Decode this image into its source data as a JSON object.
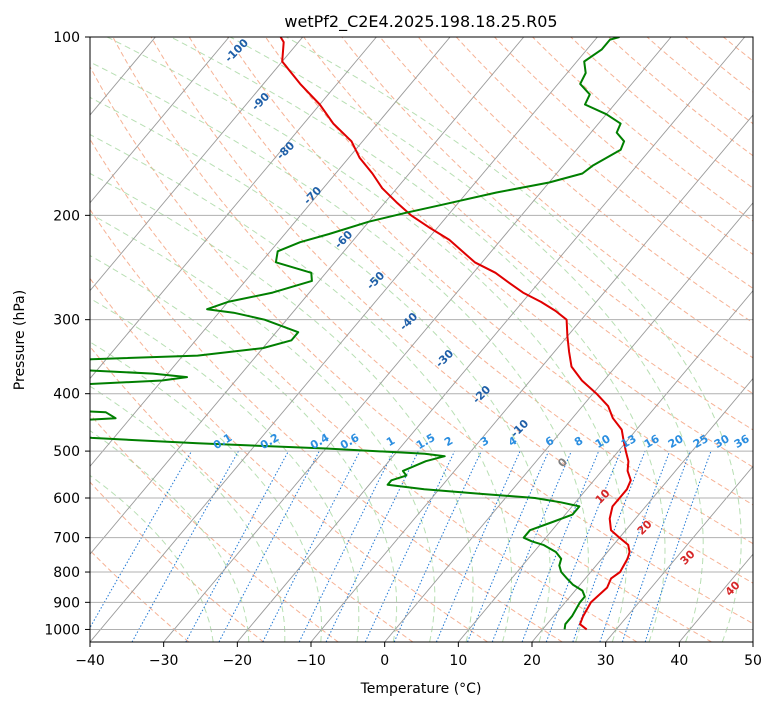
{
  "chart_data": {
    "type": "line",
    "title": "wetPf2_C2E4.2025.198.18.25.R05",
    "xlabel": "Temperature (°C)",
    "ylabel": "Pressure (hPa)",
    "xlim": [
      -40,
      50
    ],
    "ylim": [
      1050,
      100
    ],
    "log_y": true,
    "skew": true,
    "grid": true,
    "x_ticks": [
      "−40",
      "−30",
      "−20",
      "−10",
      "0",
      "10",
      "20",
      "30",
      "40",
      "50"
    ],
    "y_ticks": [
      "100",
      "200",
      "300",
      "400",
      "500",
      "600",
      "700",
      "800",
      "900",
      "1000"
    ],
    "dry_adiabat_labels": [
      "-100",
      "-90",
      "-80",
      "-70",
      "-60",
      "-50",
      "-40",
      "-30",
      "-20",
      "-10",
      "0",
      "10",
      "20",
      "30",
      "40"
    ],
    "mixing_ratio_labels": [
      "0.1",
      "0.2",
      "0.4",
      "0.6",
      "1",
      "1.5",
      "2",
      "3",
      "4",
      "6",
      "8",
      "10",
      "13",
      "16",
      "20",
      "25",
      "30",
      "36"
    ],
    "series": [
      {
        "color": "#e00000",
        "points": [
          [
            26,
            1000
          ],
          [
            24.5,
            980
          ],
          [
            24,
            950
          ],
          [
            23.5,
            900
          ],
          [
            24,
            850
          ],
          [
            23.5,
            820
          ],
          [
            24,
            800
          ],
          [
            23.5,
            760
          ],
          [
            23,
            740
          ],
          [
            22,
            720
          ],
          [
            20,
            700
          ],
          [
            18,
            680
          ],
          [
            16.5,
            650
          ],
          [
            15.5,
            620
          ],
          [
            15.5,
            600
          ],
          [
            15.5,
            580
          ],
          [
            15,
            560
          ],
          [
            13.5,
            540
          ],
          [
            12.5,
            520
          ],
          [
            11,
            500
          ],
          [
            9.5,
            480
          ],
          [
            8,
            460
          ],
          [
            5.5,
            440
          ],
          [
            3.5,
            420
          ],
          [
            0.5,
            400
          ],
          [
            -3,
            380
          ],
          [
            -6,
            360
          ],
          [
            -8,
            340
          ],
          [
            -10,
            320
          ],
          [
            -12,
            300
          ],
          [
            -14.5,
            290
          ],
          [
            -17.5,
            280
          ],
          [
            -21,
            270
          ],
          [
            -24,
            260
          ],
          [
            -27,
            250
          ],
          [
            -31,
            240
          ],
          [
            -37,
            220
          ],
          [
            -41,
            210
          ],
          [
            -45,
            200
          ],
          [
            -48.5,
            190
          ],
          [
            -52,
            180
          ],
          [
            -55,
            170
          ],
          [
            -58.5,
            160
          ],
          [
            -61.5,
            150
          ],
          [
            -66,
            140
          ],
          [
            -70,
            130
          ],
          [
            -75,
            120
          ],
          [
            -80,
            110
          ],
          [
            -82,
            102
          ],
          [
            -83,
            100
          ]
        ]
      },
      {
        "color": "#007f00",
        "points": [
          [
            23,
            1000
          ],
          [
            22.5,
            980
          ],
          [
            22.5,
            950
          ],
          [
            22,
            900
          ],
          [
            22,
            880
          ],
          [
            21,
            860
          ],
          [
            19,
            840
          ],
          [
            17.5,
            820
          ],
          [
            16,
            800
          ],
          [
            15,
            780
          ],
          [
            14.5,
            760
          ],
          [
            13,
            740
          ],
          [
            10.5,
            720
          ],
          [
            8.5,
            710
          ],
          [
            7,
            700
          ],
          [
            7,
            680
          ],
          [
            9,
            660
          ],
          [
            11,
            640
          ],
          [
            11,
            620
          ],
          [
            8,
            610
          ],
          [
            4,
            600
          ],
          [
            -4,
            590
          ],
          [
            -12,
            580
          ],
          [
            -17.5,
            570
          ],
          [
            -17.5,
            560
          ],
          [
            -16,
            550
          ],
          [
            -17,
            540
          ],
          [
            -15,
            520
          ],
          [
            -13,
            510
          ],
          [
            -16,
            505
          ],
          [
            -30,
            495
          ],
          [
            -48,
            485
          ],
          [
            -63,
            475
          ],
          [
            -70,
            460
          ],
          [
            -69,
            445
          ],
          [
            -62,
            440
          ],
          [
            -64,
            430
          ],
          [
            -72,
            425
          ],
          [
            -80,
            420
          ],
          [
            -90,
            415
          ],
          [
            -85,
            395
          ],
          [
            -78,
            390
          ],
          [
            -60,
            380
          ],
          [
            -57,
            375
          ],
          [
            -62,
            370
          ],
          [
            -72,
            365
          ],
          [
            -75,
            355
          ],
          [
            -72,
            350
          ],
          [
            -58,
            345
          ],
          [
            -50,
            335
          ],
          [
            -47,
            325
          ],
          [
            -47,
            315
          ],
          [
            -53,
            300
          ],
          [
            -58,
            292
          ],
          [
            -62,
            288
          ],
          [
            -60,
            280
          ],
          [
            -55,
            270
          ],
          [
            -51,
            258
          ],
          [
            -52,
            250
          ],
          [
            -58,
            240
          ],
          [
            -59,
            230
          ],
          [
            -57,
            222
          ],
          [
            -54,
            215
          ],
          [
            -50,
            205
          ],
          [
            -46,
            198
          ],
          [
            -42,
            192
          ],
          [
            -36,
            183
          ],
          [
            -30,
            176
          ],
          [
            -26.5,
            170
          ],
          [
            -26,
            165
          ],
          [
            -24,
            155
          ],
          [
            -24.5,
            150
          ],
          [
            -26.5,
            145
          ],
          [
            -27,
            140
          ],
          [
            -30,
            135
          ],
          [
            -34,
            130
          ],
          [
            -34.5,
            125
          ],
          [
            -37,
            120
          ],
          [
            -37.5,
            115
          ],
          [
            -39,
            110
          ],
          [
            -38,
            105
          ],
          [
            -38,
            101
          ],
          [
            -37,
            100
          ]
        ]
      }
    ]
  }
}
